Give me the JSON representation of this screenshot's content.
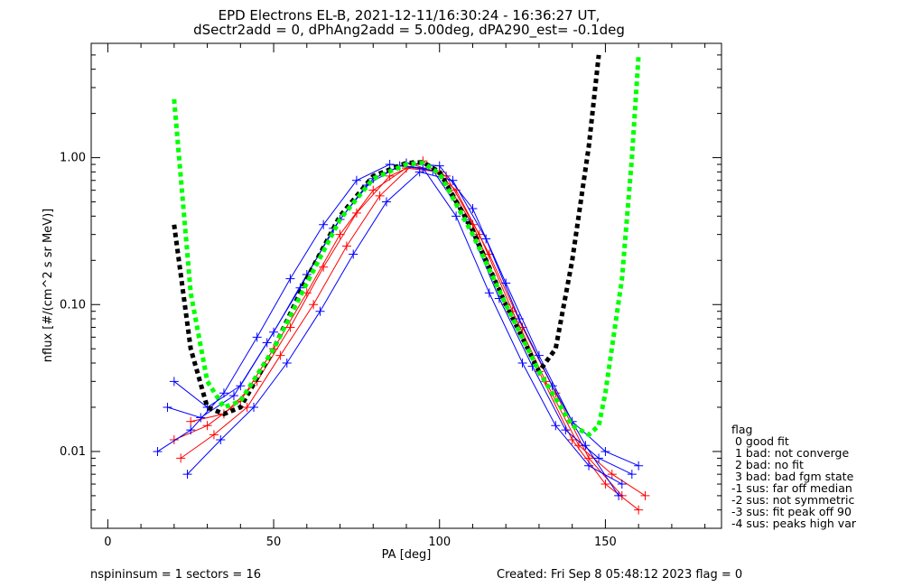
{
  "chart_data": {
    "type": "line",
    "title_line1": "EPD Electrons EL-B, 2021-12-11/16:30:24 - 16:36:27 UT,",
    "title_line2": "dSectr2add = 0, dPhAng2add = 5.00deg, dPA290_est=  -0.1deg",
    "xlabel": "PA [deg]",
    "ylabel": "nflux [#/(cm^2 s sr MeV)]",
    "xlim": [
      -5,
      185
    ],
    "ylim": [
      0.003,
      6.0
    ],
    "yscale": "log",
    "x_ticks": [
      0,
      50,
      100,
      150
    ],
    "x_tick_labels": [
      "0",
      "50",
      "100",
      "150"
    ],
    "y_ticks": [
      0.01,
      0.1,
      1.0
    ],
    "y_tick_labels": [
      "0.01",
      "0.10",
      "1.00"
    ],
    "colors": {
      "red": "#ff0000",
      "blue": "#0000ff",
      "black_fit": "#000000",
      "green_fit": "#00ff00"
    },
    "series": [
      {
        "color": "red",
        "x": [
          20,
          30,
          40,
          50,
          60,
          70,
          80,
          90,
          100,
          110,
          120,
          130,
          140,
          150,
          160
        ],
        "values": [
          0.012,
          0.015,
          0.022,
          0.05,
          0.12,
          0.3,
          0.6,
          0.85,
          0.8,
          0.35,
          0.1,
          0.035,
          0.012,
          0.006,
          0.004
        ]
      },
      {
        "color": "red",
        "x": [
          22,
          32,
          42,
          52,
          62,
          72,
          82,
          92,
          102,
          112,
          122,
          132,
          142,
          152,
          162
        ],
        "values": [
          0.009,
          0.013,
          0.02,
          0.045,
          0.1,
          0.25,
          0.55,
          0.9,
          0.75,
          0.3,
          0.09,
          0.03,
          0.011,
          0.007,
          0.005
        ]
      },
      {
        "color": "red",
        "x": [
          25,
          35,
          45,
          55,
          65,
          75,
          85,
          95,
          105,
          115,
          125,
          135,
          145,
          155
        ],
        "values": [
          0.016,
          0.018,
          0.03,
          0.07,
          0.18,
          0.42,
          0.75,
          0.95,
          0.6,
          0.22,
          0.07,
          0.025,
          0.009,
          0.005
        ]
      },
      {
        "color": "blue",
        "x": [
          15,
          25,
          35,
          45,
          55,
          65,
          75,
          85,
          95,
          105,
          115,
          125,
          135,
          145,
          155
        ],
        "values": [
          0.01,
          0.014,
          0.025,
          0.06,
          0.15,
          0.35,
          0.7,
          0.9,
          0.85,
          0.4,
          0.12,
          0.04,
          0.015,
          0.008,
          0.006
        ]
      },
      {
        "color": "blue",
        "x": [
          18,
          28,
          38,
          48,
          58,
          68,
          78,
          88,
          98,
          108,
          118,
          128,
          138,
          148,
          158
        ],
        "values": [
          0.02,
          0.017,
          0.024,
          0.055,
          0.13,
          0.33,
          0.65,
          0.88,
          0.82,
          0.38,
          0.11,
          0.038,
          0.014,
          0.009,
          0.007
        ]
      },
      {
        "color": "blue",
        "x": [
          20,
          30,
          40,
          50,
          60,
          70,
          80,
          90,
          100,
          110,
          120,
          130,
          140,
          150,
          160
        ],
        "values": [
          0.03,
          0.02,
          0.028,
          0.065,
          0.16,
          0.38,
          0.72,
          0.92,
          0.88,
          0.45,
          0.14,
          0.045,
          0.016,
          0.01,
          0.008
        ]
      },
      {
        "color": "blue",
        "x": [
          24,
          34,
          44,
          54,
          64,
          74,
          84,
          94,
          104,
          114,
          124,
          134,
          144,
          154
        ],
        "values": [
          0.007,
          0.012,
          0.02,
          0.04,
          0.09,
          0.22,
          0.5,
          0.8,
          0.7,
          0.28,
          0.08,
          0.028,
          0.011,
          0.005
        ]
      }
    ],
    "fit_black": {
      "x": [
        20,
        25,
        30,
        35,
        40,
        50,
        60,
        70,
        80,
        90,
        95,
        100,
        110,
        120,
        130,
        135,
        140,
        145,
        148
      ],
      "values": [
        0.35,
        0.05,
        0.02,
        0.018,
        0.02,
        0.05,
        0.15,
        0.4,
        0.75,
        0.92,
        0.93,
        0.8,
        0.32,
        0.1,
        0.035,
        0.05,
        0.2,
        1.2,
        5.0
      ]
    },
    "fit_green": {
      "x": [
        20,
        25,
        30,
        35,
        40,
        50,
        60,
        70,
        80,
        90,
        95,
        100,
        110,
        120,
        130,
        140,
        145,
        148,
        150,
        155,
        158,
        160
      ],
      "values": [
        2.5,
        0.12,
        0.03,
        0.02,
        0.022,
        0.05,
        0.14,
        0.38,
        0.72,
        0.9,
        0.92,
        0.78,
        0.3,
        0.1,
        0.035,
        0.015,
        0.013,
        0.015,
        0.025,
        0.15,
        1.0,
        5.0
      ]
    }
  },
  "legend": {
    "title": "flag",
    "items": [
      " 0 good fit",
      " 1 bad: not converge",
      " 2 bad: no fit",
      " 3 bad: bad fgm state",
      "-1 sus: far off median",
      "-2 sus: not symmetric",
      "-3 sus: fit peak off 90",
      "-4 sus: peaks high var"
    ]
  },
  "footer": {
    "left": "nspininsum =  1  sectors = 16",
    "right": "Created: Fri Sep  8 05:48:12 2023   flag = 0"
  }
}
